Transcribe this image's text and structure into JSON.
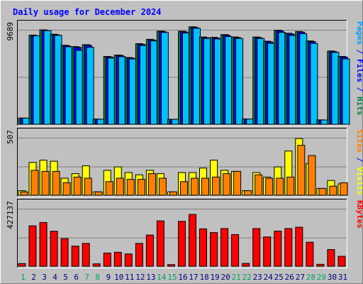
{
  "chart_data": {
    "type": "bar",
    "title": "Daily usage for December 2024",
    "days": [
      "1",
      "2",
      "3",
      "4",
      "5",
      "6",
      "7",
      "8",
      "9",
      "10",
      "11",
      "12",
      "13",
      "14",
      "15",
      "16",
      "17",
      "18",
      "19",
      "20",
      "21",
      "22",
      "23",
      "24",
      "25",
      "26",
      "27",
      "28",
      "29",
      "30",
      "31"
    ],
    "weekend_days": [
      "1",
      "7",
      "8",
      "14",
      "15",
      "21",
      "22",
      "28",
      "29"
    ],
    "panels": [
      {
        "id": "top",
        "max_label": "9689",
        "ylim": [
          0,
          9689
        ],
        "right_label": [
          {
            "text": "Pages",
            "color": "#00a0ff"
          },
          {
            "text": " / ",
            "color": "#0000ff"
          },
          {
            "text": "Files",
            "color": "#0000ff"
          },
          {
            "text": " / ",
            "color": "#0000ff"
          },
          {
            "text": "Hits",
            "color": "#008040"
          }
        ],
        "series": [
          {
            "name": "Hits",
            "color": "#008040",
            "values": [
              640,
              9150,
              9690,
              9240,
              8100,
              7970,
              8170,
              530,
              6960,
              7100,
              6850,
              8270,
              8720,
              9560,
              510,
              9550,
              10000,
              8950,
              8920,
              9200,
              8950,
              550,
              8950,
              8520,
              9650,
              9330,
              9520,
              8550,
              450,
              7520,
              6960
            ]
          },
          {
            "name": "Files",
            "color": "#0000ff",
            "values": [
              630,
              9080,
              9620,
              9170,
              8050,
              7900,
              8100,
              520,
              6900,
              7050,
              6800,
              8200,
              8650,
              9500,
              500,
              9480,
              9930,
              8880,
              8850,
              9130,
              8880,
              540,
              8880,
              8450,
              9580,
              9260,
              9450,
              8480,
              440,
              7450,
              6900
            ]
          },
          {
            "name": "Pages",
            "color": "#00c0ff",
            "values": [
              630,
              9080,
              9600,
              9120,
              7950,
              7580,
              7900,
              520,
              6800,
              6930,
              6700,
              8080,
              8550,
              9410,
              500,
              9370,
              9850,
              8800,
              8750,
              9000,
              8800,
              540,
              8800,
              8300,
              9420,
              9110,
              9290,
              8300,
              440,
              7370,
              6700
            ]
          }
        ]
      },
      {
        "id": "middle",
        "max_label": "507",
        "ylim": [
          0,
          507
        ],
        "right_label": [
          {
            "text": "Sites",
            "color": "#ff8000"
          },
          {
            "text": " / ",
            "color": "#0000ff"
          },
          {
            "text": "Visits",
            "color": "#ffff00"
          }
        ],
        "series": [
          {
            "name": "Visits",
            "color": "#ffff00",
            "values": [
              40,
              290,
              310,
              300,
              150,
              190,
              260,
              30,
              220,
              250,
              200,
              180,
              220,
              190,
              30,
              200,
              200,
              240,
              310,
              220,
              210,
              40,
              200,
              160,
              250,
              390,
              500,
              280,
              60,
              130,
              100
            ]
          },
          {
            "name": "Sites",
            "color": "#ff8000",
            "values": [
              30,
              220,
              210,
              210,
              110,
              160,
              150,
              30,
              120,
              150,
              140,
              140,
              190,
              150,
              30,
              120,
              150,
              150,
              160,
              190,
              210,
              40,
              180,
              150,
              150,
              160,
              440,
              350,
              60,
              80,
              110
            ]
          }
        ]
      },
      {
        "id": "bottom",
        "max_label": "427137",
        "ylim": [
          0,
          427137
        ],
        "right_label": [
          {
            "text": "KBytes",
            "color": "#ff0000"
          }
        ],
        "series": [
          {
            "name": "KBytes",
            "color": "#ff0000",
            "values": [
              20000,
              300000,
              325000,
              260000,
              205000,
              150000,
              170000,
              18000,
              98000,
              104000,
              92000,
              170000,
              232000,
              337000,
              12000,
              334000,
              385000,
              278000,
              250000,
              280000,
              235000,
              21000,
              280000,
              218000,
              261000,
              280000,
              290000,
              178000,
              14000,
              124000,
              74000
            ]
          }
        ]
      }
    ]
  }
}
